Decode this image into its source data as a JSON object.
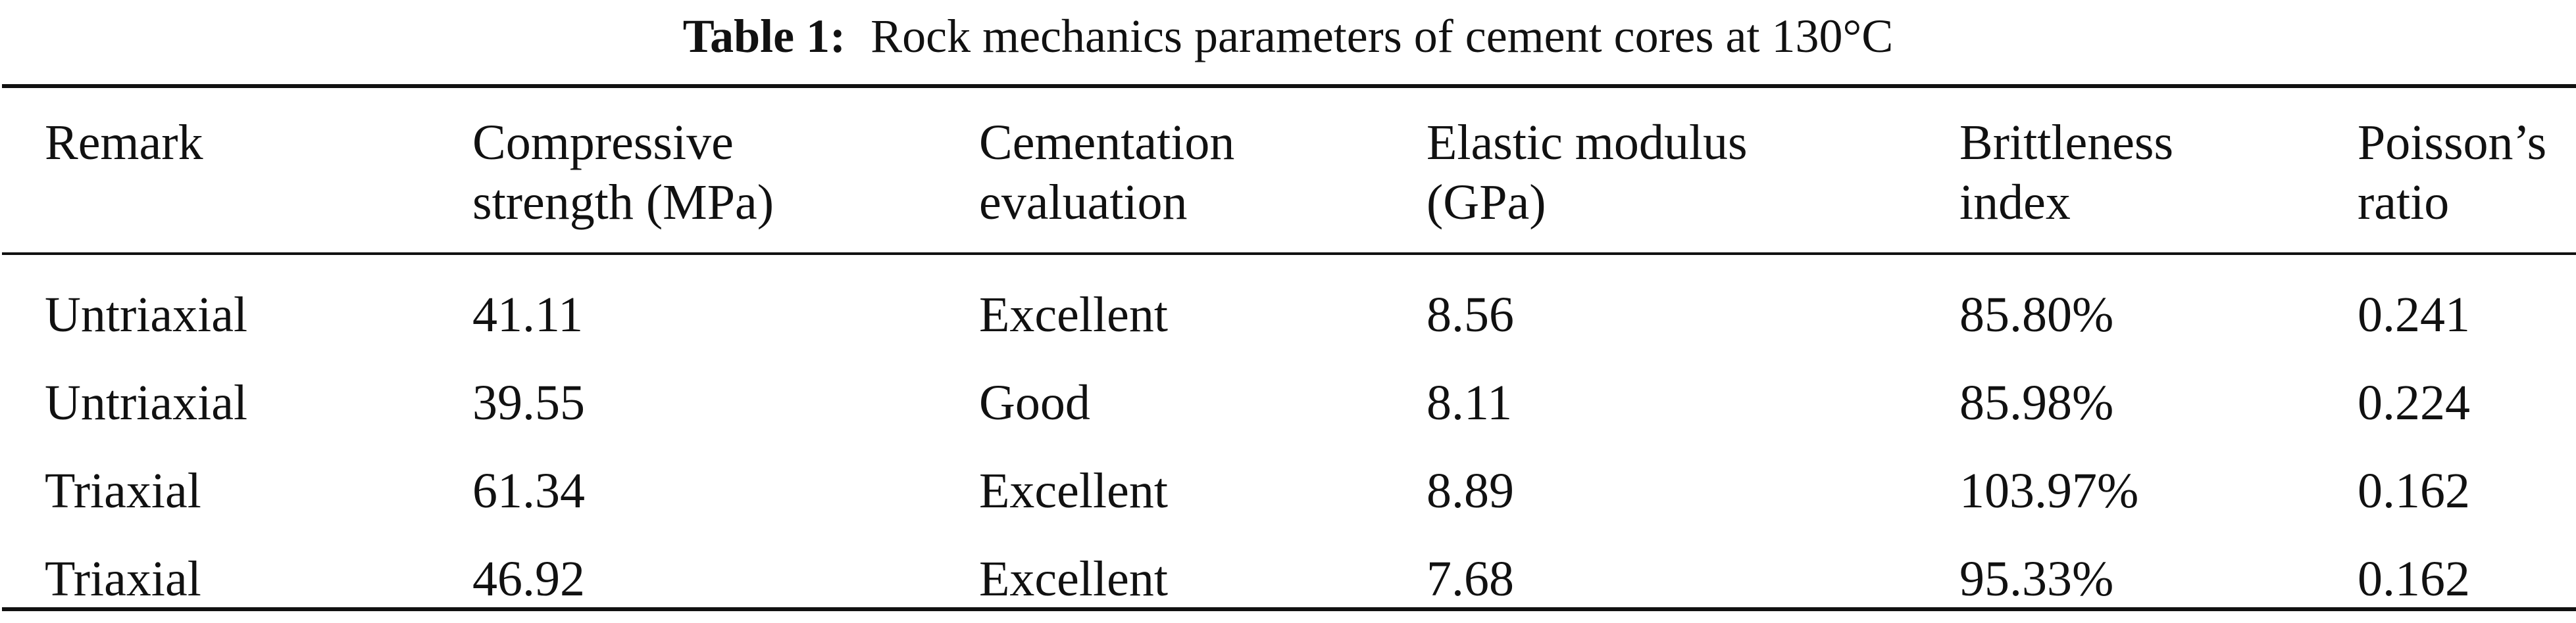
{
  "caption": {
    "label": "Table 1:",
    "title": "Rock mechanics parameters of cement cores at 130°C"
  },
  "table": {
    "headers": [
      {
        "line1": "Remark",
        "line2": ""
      },
      {
        "line1": "Compressive",
        "line2": "strength (MPa)"
      },
      {
        "line1": "Cementation",
        "line2": "evaluation"
      },
      {
        "line1": "Elastic modulus",
        "line2": "(GPa)"
      },
      {
        "line1": "Brittleness",
        "line2": "index"
      },
      {
        "line1": "Poisson’s",
        "line2": "ratio"
      }
    ],
    "rows": [
      [
        "Untriaxial",
        "41.11",
        "Excellent",
        "8.56",
        "85.80%",
        "0.241"
      ],
      [
        "Untriaxial",
        "39.55",
        "Good",
        "8.11",
        "85.98%",
        "0.224"
      ],
      [
        "Triaxial",
        "61.34",
        "Excellent",
        "8.89",
        "103.97%",
        "0.162"
      ],
      [
        "Triaxial",
        "46.92",
        "Excellent",
        "7.68",
        "95.33%",
        "0.162"
      ]
    ]
  }
}
